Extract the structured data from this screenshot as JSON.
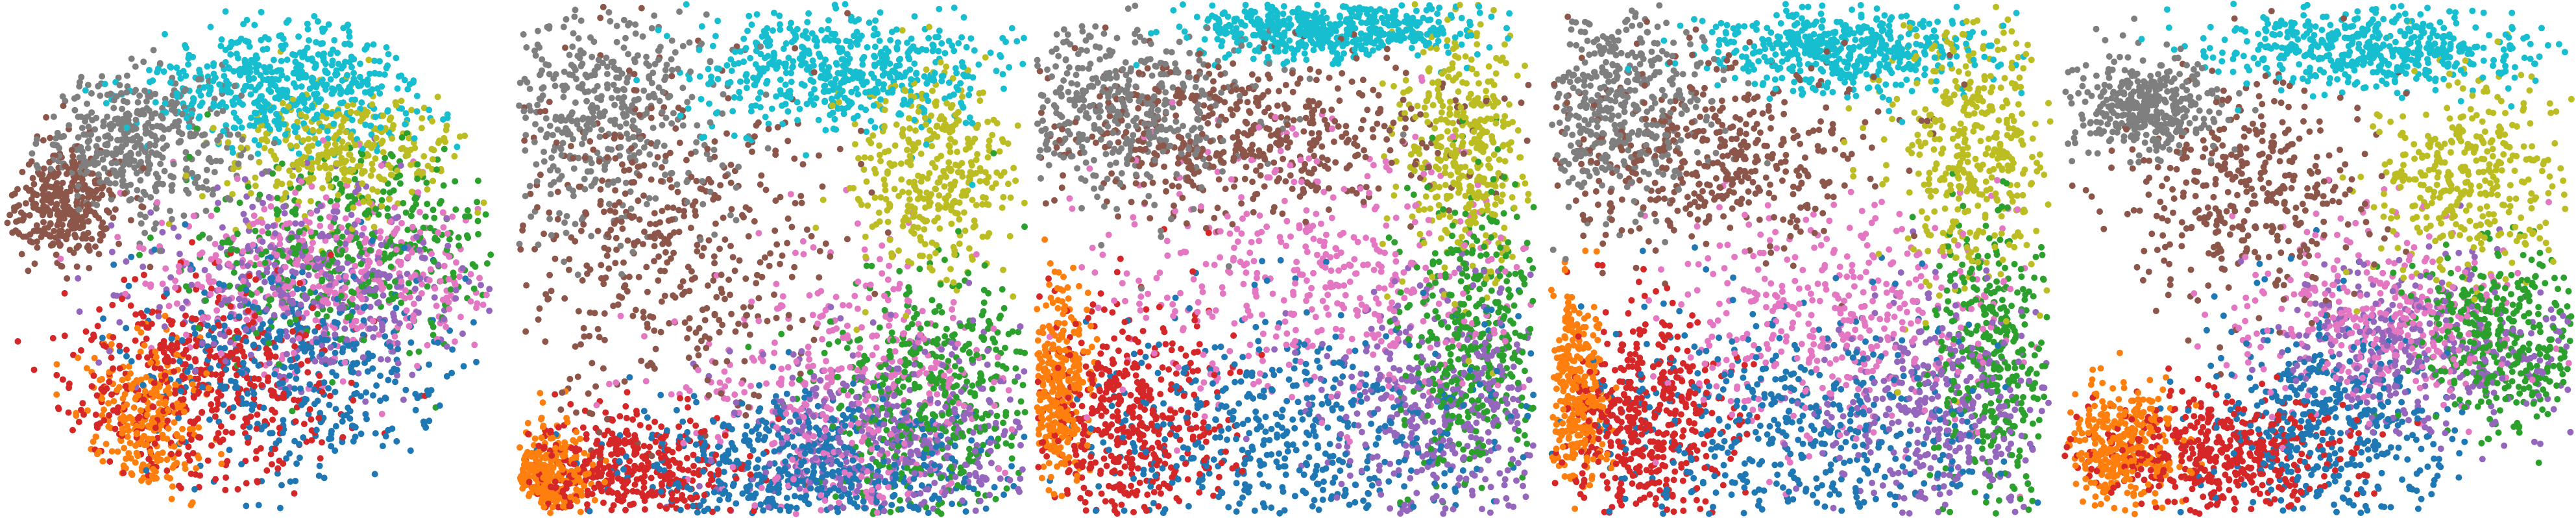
{
  "chart_data": [
    {
      "type": "scatter",
      "panel": "p1",
      "title": "",
      "xlabel": "",
      "ylabel": "",
      "axes_visible": false,
      "grid": false,
      "legend": "none",
      "shape": "circle",
      "xlim": [
        0,
        100
      ],
      "ylim": [
        0,
        100
      ],
      "clusters": [
        {
          "color": "#7f7f7f",
          "cx": 27,
          "cy": 73,
          "sx": 10,
          "sy": 7,
          "n": 420
        },
        {
          "color": "#8c564b",
          "cx": 12,
          "cy": 61,
          "sx": 6,
          "sy": 6,
          "n": 320
        },
        {
          "color": "#17becf",
          "cx": 58,
          "cy": 84,
          "sx": 15,
          "sy": 6,
          "n": 520
        },
        {
          "color": "#bcbd22",
          "cx": 69,
          "cy": 71,
          "sx": 12,
          "sy": 6,
          "n": 320
        },
        {
          "color": "#e377c2",
          "cx": 66,
          "cy": 47,
          "sx": 18,
          "sy": 9,
          "n": 420
        },
        {
          "color": "#9467bd",
          "cx": 63,
          "cy": 45,
          "sx": 18,
          "sy": 10,
          "n": 380
        },
        {
          "color": "#2ca02c",
          "cx": 71,
          "cy": 52,
          "sx": 18,
          "sy": 9,
          "n": 380
        },
        {
          "color": "#1f77b4",
          "cx": 60,
          "cy": 29,
          "sx": 17,
          "sy": 11,
          "n": 420
        },
        {
          "color": "#d62728",
          "cx": 39,
          "cy": 25,
          "sx": 14,
          "sy": 10,
          "n": 480
        },
        {
          "color": "#ff7f0e",
          "cx": 28,
          "cy": 18,
          "sx": 6,
          "sy": 8,
          "n": 260
        }
      ]
    },
    {
      "type": "scatter",
      "panel": "p2",
      "title": "",
      "xlabel": "",
      "ylabel": "",
      "axes_visible": false,
      "grid": false,
      "legend": "none",
      "shape": "square",
      "xlim": [
        0,
        100
      ],
      "ylim": [
        0,
        100
      ],
      "clusters": [
        {
          "color": "#7f7f7f",
          "cx": 16,
          "cy": 79,
          "sx": 12,
          "sy": 12,
          "n": 420
        },
        {
          "color": "#8c564b",
          "cx": 27,
          "cy": 55,
          "sx": 17,
          "sy": 17,
          "n": 460
        },
        {
          "color": "#17becf",
          "cx": 63,
          "cy": 87,
          "sx": 15,
          "sy": 6,
          "n": 520
        },
        {
          "color": "#bcbd22",
          "cx": 82,
          "cy": 66,
          "sx": 9,
          "sy": 10,
          "n": 360
        },
        {
          "color": "#2ca02c",
          "cx": 82,
          "cy": 24,
          "sx": 12,
          "sy": 12,
          "n": 420
        },
        {
          "color": "#e377c2",
          "cx": 65,
          "cy": 22,
          "sx": 16,
          "sy": 14,
          "n": 420
        },
        {
          "color": "#9467bd",
          "cx": 75,
          "cy": 14,
          "sx": 15,
          "sy": 10,
          "n": 380
        },
        {
          "color": "#1f77b4",
          "cx": 57,
          "cy": 9,
          "sx": 18,
          "sy": 7,
          "n": 520
        },
        {
          "color": "#d62728",
          "cx": 21,
          "cy": 8,
          "sx": 11,
          "sy": 6,
          "n": 380
        },
        {
          "color": "#ff7f0e",
          "cx": 5,
          "cy": 7,
          "sx": 4,
          "sy": 5,
          "n": 240
        }
      ]
    },
    {
      "type": "scatter",
      "panel": "p3",
      "title": "",
      "xlabel": "",
      "ylabel": "",
      "axes_visible": false,
      "grid": false,
      "legend": "none",
      "shape": "square",
      "xlim": [
        0,
        100
      ],
      "ylim": [
        0,
        100
      ],
      "clusters": [
        {
          "color": "#7f7f7f",
          "cx": 16,
          "cy": 80,
          "sx": 13,
          "sy": 9,
          "n": 420
        },
        {
          "color": "#8c564b",
          "cx": 40,
          "cy": 74,
          "sx": 22,
          "sy": 8,
          "n": 520
        },
        {
          "color": "#17becf",
          "cx": 57,
          "cy": 95,
          "sx": 14,
          "sy": 3,
          "n": 520
        },
        {
          "color": "#bcbd22",
          "cx": 86,
          "cy": 71,
          "sx": 6,
          "sy": 12,
          "n": 400
        },
        {
          "color": "#e377c2",
          "cx": 58,
          "cy": 47,
          "sx": 22,
          "sy": 14,
          "n": 460
        },
        {
          "color": "#2ca02c",
          "cx": 88,
          "cy": 35,
          "sx": 7,
          "sy": 15,
          "n": 380
        },
        {
          "color": "#9467bd",
          "cx": 82,
          "cy": 20,
          "sx": 12,
          "sy": 12,
          "n": 400
        },
        {
          "color": "#1f77b4",
          "cx": 50,
          "cy": 15,
          "sx": 22,
          "sy": 12,
          "n": 500
        },
        {
          "color": "#d62728",
          "cx": 18,
          "cy": 18,
          "sx": 10,
          "sy": 12,
          "n": 460
        },
        {
          "color": "#ff7f0e",
          "cx": 4,
          "cy": 25,
          "sx": 3,
          "sy": 10,
          "n": 300
        }
      ]
    },
    {
      "type": "scatter",
      "panel": "p4",
      "title": "",
      "xlabel": "",
      "ylabel": "",
      "axes_visible": false,
      "grid": false,
      "legend": "none",
      "shape": "square",
      "xlim": [
        0,
        100
      ],
      "ylim": [
        0,
        100
      ],
      "clusters": [
        {
          "color": "#7f7f7f",
          "cx": 13,
          "cy": 79,
          "sx": 9,
          "sy": 10,
          "n": 420
        },
        {
          "color": "#8c564b",
          "cx": 32,
          "cy": 70,
          "sx": 17,
          "sy": 10,
          "n": 440
        },
        {
          "color": "#17becf",
          "cx": 58,
          "cy": 91,
          "sx": 14,
          "sy": 4,
          "n": 500
        },
        {
          "color": "#bcbd22",
          "cx": 84,
          "cy": 71,
          "sx": 8,
          "sy": 14,
          "n": 400
        },
        {
          "color": "#e377c2",
          "cx": 58,
          "cy": 37,
          "sx": 17,
          "sy": 13,
          "n": 420
        },
        {
          "color": "#2ca02c",
          "cx": 89,
          "cy": 30,
          "sx": 6,
          "sy": 14,
          "n": 340
        },
        {
          "color": "#9467bd",
          "cx": 78,
          "cy": 20,
          "sx": 12,
          "sy": 11,
          "n": 360
        },
        {
          "color": "#1f77b4",
          "cx": 48,
          "cy": 17,
          "sx": 20,
          "sy": 12,
          "n": 480
        },
        {
          "color": "#d62728",
          "cx": 18,
          "cy": 18,
          "sx": 9,
          "sy": 11,
          "n": 460
        },
        {
          "color": "#ff7f0e",
          "cx": 5,
          "cy": 25,
          "sx": 3,
          "sy": 10,
          "n": 300
        }
      ]
    },
    {
      "type": "scatter",
      "panel": "p5",
      "title": "",
      "xlabel": "",
      "ylabel": "",
      "axes_visible": false,
      "grid": false,
      "legend": "none",
      "shape": "square",
      "xlim": [
        0,
        100
      ],
      "ylim": [
        0,
        100
      ],
      "clusters": [
        {
          "color": "#7f7f7f",
          "cx": 16,
          "cy": 80,
          "sx": 7,
          "sy": 5,
          "n": 380
        },
        {
          "color": "#8c564b",
          "cx": 36,
          "cy": 63,
          "sx": 12,
          "sy": 11,
          "n": 380
        },
        {
          "color": "#17becf",
          "cx": 60,
          "cy": 91,
          "sx": 16,
          "sy": 4,
          "n": 500
        },
        {
          "color": "#bcbd22",
          "cx": 80,
          "cy": 66,
          "sx": 9,
          "sy": 10,
          "n": 360
        },
        {
          "color": "#2ca02c",
          "cx": 86,
          "cy": 34,
          "sx": 9,
          "sy": 9,
          "n": 380
        },
        {
          "color": "#e377c2",
          "cx": 62,
          "cy": 38,
          "sx": 14,
          "sy": 9,
          "n": 380
        },
        {
          "color": "#9467bd",
          "cx": 72,
          "cy": 32,
          "sx": 15,
          "sy": 9,
          "n": 360
        },
        {
          "color": "#1f77b4",
          "cx": 52,
          "cy": 17,
          "sx": 12,
          "sy": 11,
          "n": 440
        },
        {
          "color": "#d62728",
          "cx": 30,
          "cy": 12,
          "sx": 12,
          "sy": 6,
          "n": 460
        },
        {
          "color": "#ff7f0e",
          "cx": 11,
          "cy": 13,
          "sx": 6,
          "sy": 6,
          "n": 320
        }
      ]
    }
  ]
}
